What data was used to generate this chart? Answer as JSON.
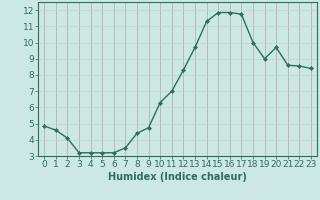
{
  "x": [
    0,
    1,
    2,
    3,
    4,
    5,
    6,
    7,
    8,
    9,
    10,
    11,
    12,
    13,
    14,
    15,
    16,
    17,
    18,
    19,
    20,
    21,
    22,
    23
  ],
  "y": [
    4.85,
    4.6,
    4.1,
    3.2,
    3.2,
    3.2,
    3.2,
    3.5,
    4.4,
    4.75,
    6.3,
    7.0,
    8.3,
    9.7,
    11.3,
    11.85,
    11.85,
    11.75,
    10.0,
    9.0,
    9.7,
    8.6,
    8.55,
    8.4
  ],
  "line_color": "#2d6e5e",
  "marker": "D",
  "marker_size": 2.0,
  "linewidth": 1.0,
  "xlabel": "Humidex (Indice chaleur)",
  "xlim": [
    -0.5,
    23.5
  ],
  "ylim": [
    3,
    12.5
  ],
  "yticks": [
    3,
    4,
    5,
    6,
    7,
    8,
    9,
    10,
    11,
    12
  ],
  "xticks": [
    0,
    1,
    2,
    3,
    4,
    5,
    6,
    7,
    8,
    9,
    10,
    11,
    12,
    13,
    14,
    15,
    16,
    17,
    18,
    19,
    20,
    21,
    22,
    23
  ],
  "xtick_labels": [
    "0",
    "1",
    "2",
    "3",
    "4",
    "5",
    "6",
    "7",
    "8",
    "9",
    "10",
    "11",
    "12",
    "13",
    "14",
    "15",
    "16",
    "17",
    "18",
    "19",
    "20",
    "21",
    "22",
    "23"
  ],
  "background_color": "#cce8e4",
  "grid_color": "#b8d8d4",
  "line_grid_color": "#c4a0a0",
  "tick_color": "#2d6e5e",
  "label_color": "#2d6e5e",
  "xlabel_fontsize": 7,
  "tick_fontsize": 6.5
}
